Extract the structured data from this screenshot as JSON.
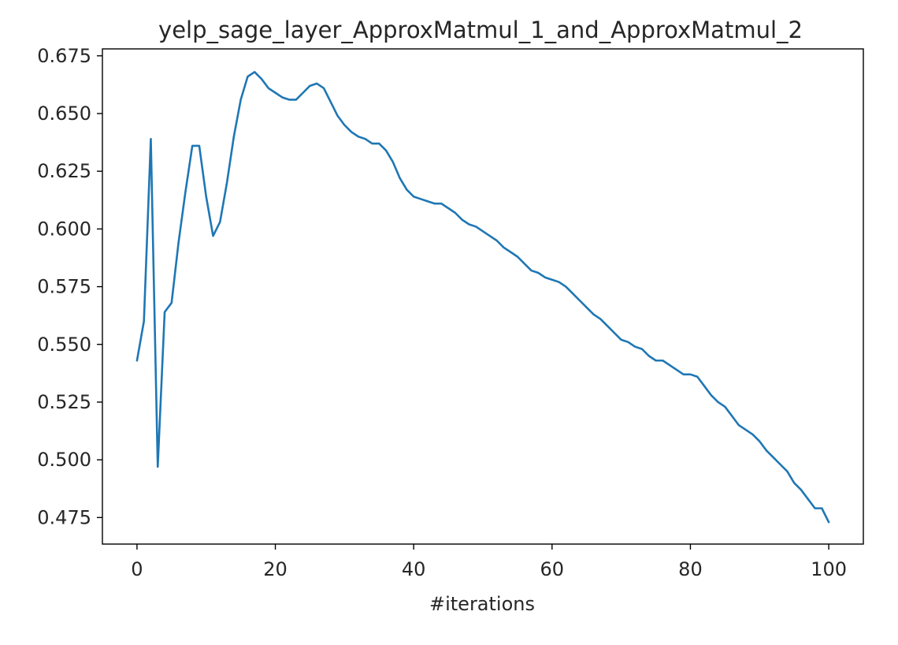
{
  "chart_data": {
    "type": "line",
    "title": "yelp_sage_layer_ApproxMatmul_1_and_ApproxMatmul_2",
    "xlabel": "#iterations",
    "ylabel": "",
    "xlim": [
      -5,
      105
    ],
    "ylim": [
      0.4635,
      0.678
    ],
    "x_ticks": [
      0,
      20,
      40,
      60,
      80,
      100
    ],
    "y_ticks": [
      0.475,
      0.5,
      0.525,
      0.55,
      0.575,
      0.6,
      0.625,
      0.65,
      0.675
    ],
    "x_tick_labels": [
      "0",
      "20",
      "40",
      "60",
      "80",
      "100"
    ],
    "y_tick_labels": [
      "0.475",
      "0.500",
      "0.525",
      "0.550",
      "0.575",
      "0.600",
      "0.625",
      "0.650",
      "0.675"
    ],
    "grid": false,
    "legend": "none",
    "series": [
      {
        "color": "#1f77b4",
        "x": [
          0,
          1,
          2,
          3,
          4,
          5,
          6,
          7,
          8,
          9,
          10,
          11,
          12,
          13,
          14,
          15,
          16,
          17,
          18,
          19,
          20,
          21,
          22,
          23,
          24,
          25,
          26,
          27,
          28,
          29,
          30,
          31,
          32,
          33,
          34,
          35,
          36,
          37,
          38,
          39,
          40,
          41,
          42,
          43,
          44,
          45,
          46,
          47,
          48,
          49,
          50,
          51,
          52,
          53,
          54,
          55,
          56,
          57,
          58,
          59,
          60,
          61,
          62,
          63,
          64,
          65,
          66,
          67,
          68,
          69,
          70,
          71,
          72,
          73,
          74,
          75,
          76,
          77,
          78,
          79,
          80,
          81,
          82,
          83,
          84,
          85,
          86,
          87,
          88,
          89,
          90,
          91,
          92,
          93,
          94,
          95,
          96,
          97,
          98,
          99,
          100
        ],
        "y": [
          0.543,
          0.56,
          0.639,
          0.497,
          0.564,
          0.568,
          0.594,
          0.616,
          0.636,
          0.636,
          0.614,
          0.597,
          0.603,
          0.62,
          0.64,
          0.656,
          0.666,
          0.668,
          0.665,
          0.661,
          0.659,
          0.657,
          0.656,
          0.656,
          0.659,
          0.662,
          0.663,
          0.661,
          0.655,
          0.649,
          0.645,
          0.642,
          0.64,
          0.639,
          0.637,
          0.637,
          0.634,
          0.629,
          0.622,
          0.617,
          0.614,
          0.613,
          0.612,
          0.611,
          0.611,
          0.609,
          0.607,
          0.604,
          0.602,
          0.601,
          0.599,
          0.597,
          0.595,
          0.592,
          0.59,
          0.588,
          0.585,
          0.582,
          0.581,
          0.579,
          0.578,
          0.577,
          0.575,
          0.572,
          0.569,
          0.566,
          0.563,
          0.561,
          0.558,
          0.555,
          0.552,
          0.551,
          0.549,
          0.548,
          0.545,
          0.543,
          0.543,
          0.541,
          0.539,
          0.537,
          0.537,
          0.536,
          0.532,
          0.528,
          0.525,
          0.523,
          0.519,
          0.515,
          0.513,
          0.511,
          0.508,
          0.504,
          0.501,
          0.498,
          0.495,
          0.49,
          0.487,
          0.483,
          0.479,
          0.479,
          0.473
        ]
      }
    ]
  }
}
